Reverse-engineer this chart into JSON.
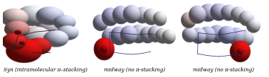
{
  "captions": [
    "Syn (intramolecular π–stacking)",
    "midway (no π-stacking)",
    "midway (no π-stacking)"
  ],
  "bg_color": "#ffffff",
  "caption_fontsize": 5.2,
  "fig_width": 3.78,
  "fig_height": 1.09,
  "dpi": 100
}
